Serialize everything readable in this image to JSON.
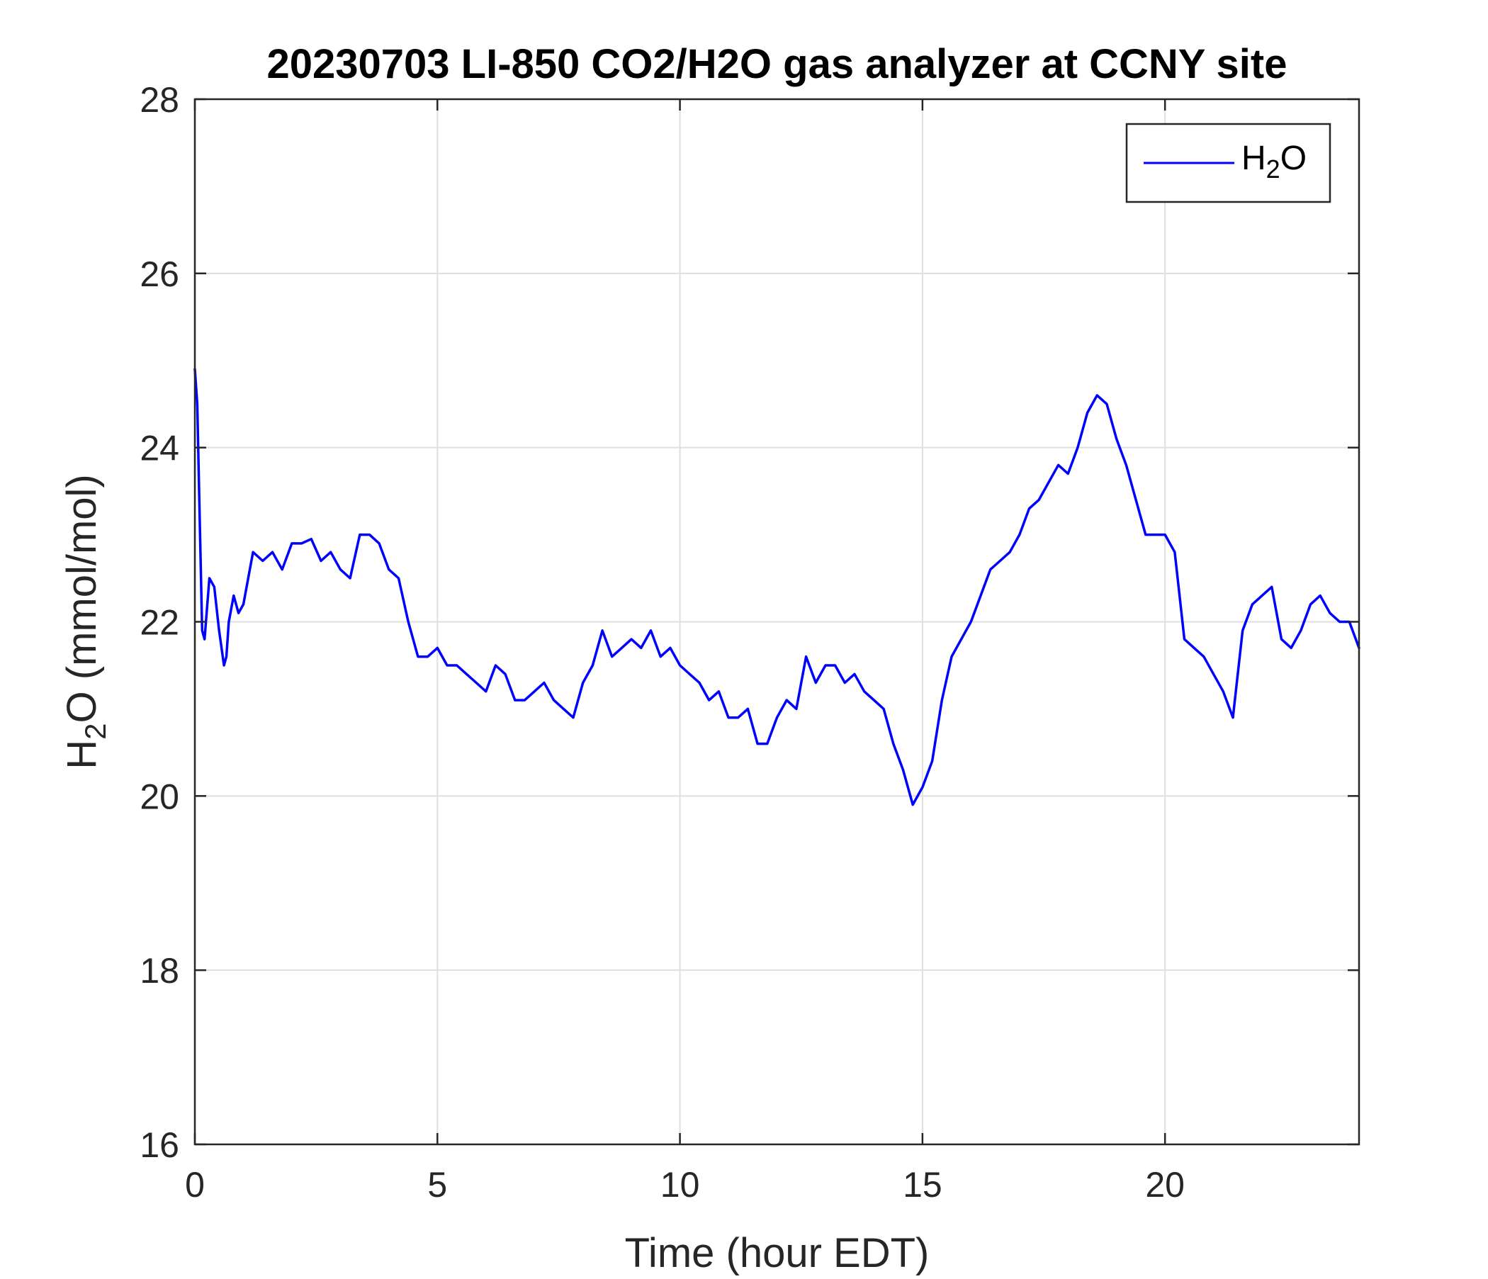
{
  "chart_data": {
    "type": "line",
    "title": "20230703 LI-850 CO2/H2O gas analyzer at CCNY site",
    "xlabel": "Time (hour EDT)",
    "ylabel": {
      "base": "H",
      "sub": "2",
      "rest": "O (mmol/mol)"
    },
    "xlim": [
      0,
      24
    ],
    "ylim": [
      16,
      28
    ],
    "xticks": [
      0,
      5,
      10,
      15,
      20
    ],
    "yticks": [
      16,
      18,
      20,
      22,
      24,
      26,
      28
    ],
    "grid": true,
    "legend_position": "top-right",
    "colors": {
      "series": "#0000ff",
      "grid": "#dfdfdf",
      "axis": "#262626"
    },
    "series": [
      {
        "name": {
          "base": "H",
          "sub": "2",
          "rest": "O"
        },
        "x": [
          0,
          0.05,
          0.1,
          0.15,
          0.2,
          0.3,
          0.4,
          0.5,
          0.6,
          0.65,
          0.7,
          0.8,
          0.9,
          1.0,
          1.1,
          1.2,
          1.4,
          1.6,
          1.8,
          2.0,
          2.2,
          2.4,
          2.6,
          2.8,
          3.0,
          3.2,
          3.4,
          3.6,
          3.8,
          4.0,
          4.2,
          4.4,
          4.6,
          4.8,
          5.0,
          5.2,
          5.4,
          5.6,
          5.8,
          6.0,
          6.2,
          6.4,
          6.6,
          6.8,
          7.0,
          7.2,
          7.4,
          7.6,
          7.8,
          8.0,
          8.2,
          8.4,
          8.6,
          8.8,
          9.0,
          9.2,
          9.4,
          9.6,
          9.8,
          10.0,
          10.2,
          10.4,
          10.6,
          10.8,
          11.0,
          11.2,
          11.4,
          11.6,
          11.8,
          12.0,
          12.2,
          12.4,
          12.6,
          12.8,
          13.0,
          13.2,
          13.4,
          13.6,
          13.8,
          14.0,
          14.2,
          14.4,
          14.6,
          14.8,
          15.0,
          15.2,
          15.4,
          15.6,
          15.8,
          16.0,
          16.2,
          16.4,
          16.6,
          16.8,
          17.0,
          17.2,
          17.4,
          17.6,
          17.8,
          18.0,
          18.2,
          18.4,
          18.6,
          18.8,
          19.0,
          19.2,
          19.4,
          19.6,
          19.8,
          20.0,
          20.2,
          20.4,
          20.6,
          20.8,
          21.0,
          21.2,
          21.4,
          21.6,
          21.8,
          22.0,
          22.2,
          22.4,
          22.6,
          22.8,
          23.0,
          23.2,
          23.4,
          23.6,
          23.8,
          24.0
        ],
        "y": [
          24.9,
          24.5,
          23.2,
          21.9,
          21.8,
          22.5,
          22.4,
          21.9,
          21.5,
          21.6,
          22.0,
          22.3,
          22.1,
          22.2,
          22.5,
          22.8,
          22.7,
          22.8,
          22.6,
          22.9,
          22.9,
          22.95,
          22.7,
          22.8,
          22.6,
          22.5,
          23.0,
          23.0,
          22.9,
          22.6,
          22.5,
          22.0,
          21.6,
          21.6,
          21.7,
          21.5,
          21.5,
          21.4,
          21.3,
          21.2,
          21.5,
          21.4,
          21.1,
          21.1,
          21.2,
          21.3,
          21.1,
          21.0,
          20.9,
          21.3,
          21.5,
          21.9,
          21.6,
          21.7,
          21.8,
          21.7,
          21.9,
          21.6,
          21.7,
          21.5,
          21.4,
          21.3,
          21.1,
          21.2,
          20.9,
          20.9,
          21.0,
          20.6,
          20.6,
          20.9,
          21.1,
          21.0,
          21.6,
          21.3,
          21.5,
          21.5,
          21.3,
          21.4,
          21.2,
          21.1,
          21.0,
          20.6,
          20.3,
          19.9,
          20.1,
          20.4,
          21.1,
          21.6,
          21.8,
          22.0,
          22.3,
          22.6,
          22.7,
          22.8,
          23.0,
          23.3,
          23.4,
          23.6,
          23.8,
          23.7,
          24.0,
          24.4,
          24.6,
          24.5,
          24.1,
          23.8,
          23.4,
          23.0,
          23.0,
          23.0,
          22.8,
          21.8,
          21.7,
          21.6,
          21.4,
          21.2,
          20.9,
          21.9,
          22.2,
          22.3,
          22.4,
          21.8,
          21.7,
          21.9,
          22.2,
          22.3,
          22.1,
          22.0,
          22.0,
          21.7
        ]
      }
    ]
  }
}
